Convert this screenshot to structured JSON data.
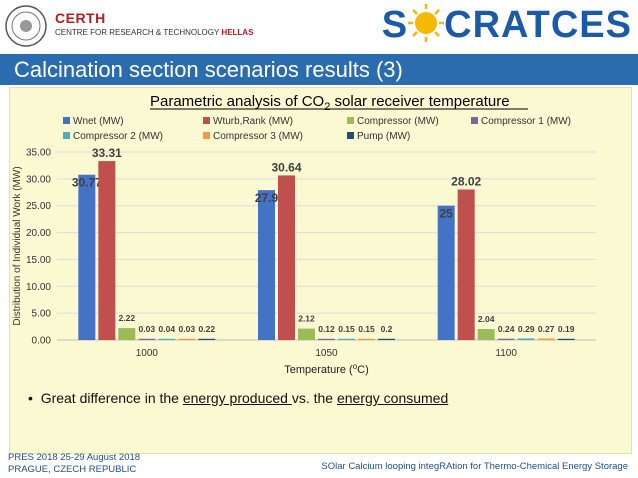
{
  "header": {
    "org_name": "CERTH",
    "org_sub_prefix": "CENTRE FOR RESEARCH & TECHNOLOGY",
    "org_sub_suffix": "HELLAS",
    "brand_left": "S",
    "brand_right": "CRATCES"
  },
  "slide_title": "Calcination section scenarios results (3)",
  "bullet": {
    "pre": "Great difference in the ",
    "link1": "energy produced ",
    "mid": "vs. the ",
    "link2": "energy consumed "
  },
  "footer": {
    "line1": "PRES 2018 25-29 August 2018",
    "line2": "PRAGUE, CZECH REPUBLIC",
    "project": "SOlar Calcium looping integRAtion for Thermo-Chemical Energy Storage"
  },
  "colors": {
    "title_bar": "#2b6cae",
    "panel": "#fbf9d2",
    "certh_red": "#b81c22"
  },
  "chart_data": {
    "type": "bar",
    "title": "Parametric analysis of CO2 solar receiver temperature",
    "title_pre": "Parametric analysis of CO",
    "title_sub": "2",
    "title_post": " solar receiver temperature",
    "xlabel": "Temperature (oC)",
    "xlabel_pre": "Temperature (",
    "xlabel_sup": "o",
    "xlabel_post": "C)",
    "ylabel": "Distribution of Individual Work (MW)",
    "ylim": [
      0,
      35
    ],
    "yticks": [
      "0.00",
      "5.00",
      "10.00",
      "15.00",
      "20.00",
      "25.00",
      "30.00",
      "35.00"
    ],
    "categories": [
      "1000",
      "1050",
      "1100"
    ],
    "legend_position": "top",
    "series": [
      {
        "name": "Wnet (MW)",
        "color": "#4472c4",
        "values": [
          30.77,
          27.9,
          25
        ],
        "labels": [
          "30.77",
          "27.9",
          "25"
        ]
      },
      {
        "name": "Wturb,Rank (MW)",
        "color": "#c0504d",
        "values": [
          33.31,
          30.64,
          28.02
        ],
        "labels": [
          "33.31",
          "30.64",
          "28.02"
        ]
      },
      {
        "name": "Compressor  (MW)",
        "color": "#9bbb59",
        "values": [
          2.22,
          2.12,
          2.04
        ],
        "labels": [
          "2.22",
          "2.12",
          "2.04"
        ]
      },
      {
        "name": "Compressor 1 (MW)",
        "color": "#8064a2",
        "values": [
          0.03,
          0.12,
          0.24
        ],
        "labels": [
          "0.03",
          "0.12",
          "0.24"
        ]
      },
      {
        "name": "Compressor 2 (MW)",
        "color": "#4bacc6",
        "values": [
          0.04,
          0.15,
          0.29
        ],
        "labels": [
          "0.04",
          "0.15",
          "0.29"
        ]
      },
      {
        "name": "Compressor 3 (MW)",
        "color": "#f79646",
        "values": [
          0.03,
          0.15,
          0.27
        ],
        "labels": [
          "0.03",
          "0.15",
          "0.27"
        ]
      },
      {
        "name": "Pump (MW)",
        "color": "#1f4e79",
        "values": [
          0.22,
          0.2,
          0.19
        ],
        "labels": [
          "0.22",
          "0.2",
          "0.19"
        ]
      }
    ]
  }
}
